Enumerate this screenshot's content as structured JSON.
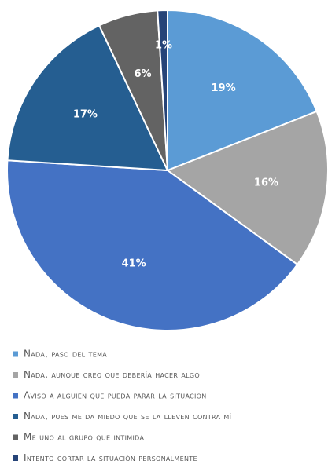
{
  "chart_data": {
    "type": "pie",
    "categories": [
      "Nada, paso del tema",
      "Nada, aunque creo que debería hacer algo",
      "Aviso a alguien que pueda parar la situación",
      "Nada, pues me da miedo que se la lleven contra mí",
      "Me uno al grupo que intimida",
      "Intento cortar la situación personalmente"
    ],
    "values": [
      19,
      16,
      41,
      17,
      6,
      1
    ],
    "value_labels": [
      "19%",
      "16%",
      "41%",
      "17%",
      "6%",
      "1%"
    ],
    "colors": [
      "#5b9bd5",
      "#a5a5a5",
      "#4472c4",
      "#255e91",
      "#636363",
      "#264478"
    ],
    "legend": "bottom"
  }
}
